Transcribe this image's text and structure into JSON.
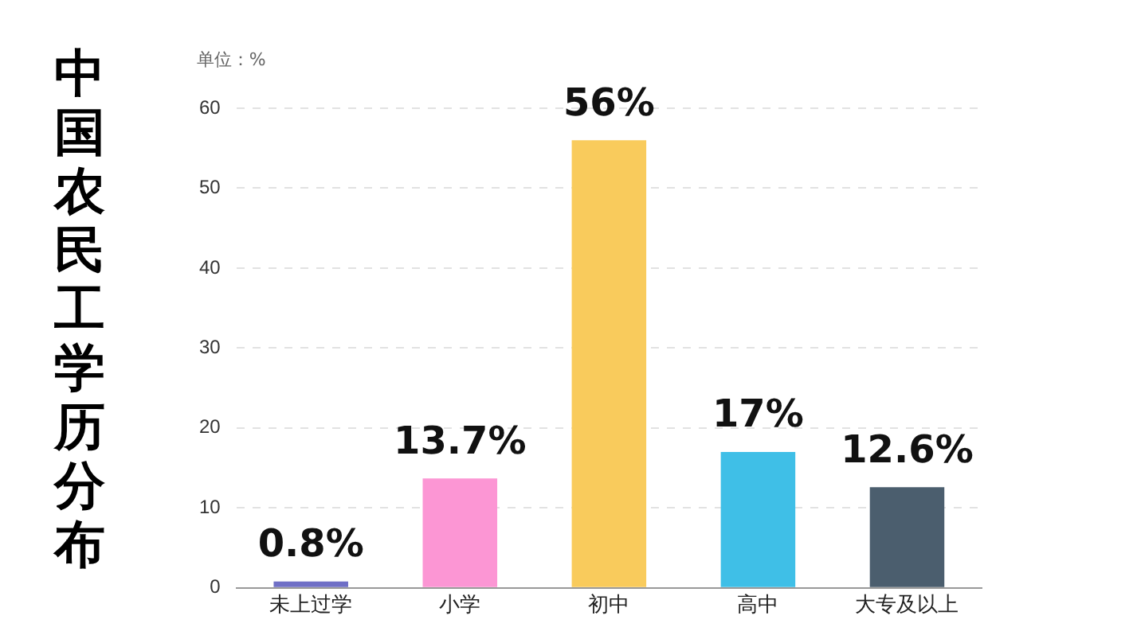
{
  "chart_data": {
    "type": "bar",
    "title": "中国农民工学历分布",
    "ylabel": "单位：%",
    "categories": [
      "未上过学",
      "小学",
      "初中",
      "高中",
      "大专及以上"
    ],
    "values": [
      0.8,
      13.7,
      56,
      17,
      12.6
    ],
    "colors": [
      "#6f6fc6",
      "#fc96d4",
      "#f9cb5c",
      "#3fbfe7",
      "#4b5e6e"
    ],
    "value_labels": [
      "0.8%",
      "13.7%",
      "56%",
      "17%",
      "12.6%"
    ],
    "ylim": [
      0,
      60
    ],
    "yticks": [
      0,
      10,
      20,
      30,
      40,
      50,
      60
    ],
    "grid": "y",
    "legend": false
  }
}
